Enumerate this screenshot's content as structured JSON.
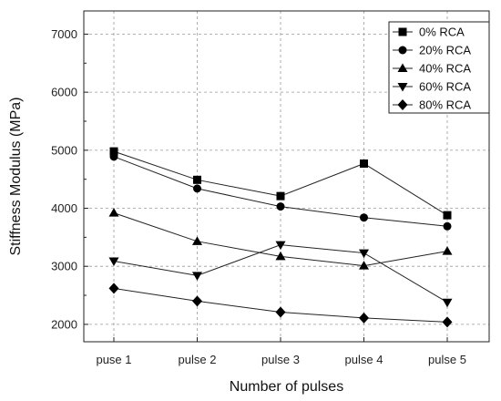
{
  "chart_data": {
    "type": "line",
    "categories": [
      "puse 1",
      "pulse 2",
      "pulse 3",
      "pulse 4",
      "pulse 5"
    ],
    "xlabel": "Number of pulses",
    "ylabel": "Stiffness Modulus (MPa)",
    "ylim": [
      1700,
      7400
    ],
    "yticks": [
      2000,
      3000,
      4000,
      5000,
      6000,
      7000
    ],
    "grid": true,
    "legend_position": "top-right",
    "series": [
      {
        "name": "0% RCA",
        "marker": "square",
        "values": [
          4980,
          4490,
          4210,
          4770,
          3880
        ]
      },
      {
        "name": "20% RCA",
        "marker": "circle",
        "values": [
          4890,
          4340,
          4030,
          3840,
          3690
        ]
      },
      {
        "name": "40% RCA",
        "marker": "triangle-up",
        "values": [
          3920,
          3430,
          3170,
          3010,
          3260
        ]
      },
      {
        "name": "60% RCA",
        "marker": "triangle-down",
        "values": [
          3090,
          2840,
          3370,
          3230,
          2380
        ]
      },
      {
        "name": "80% RCA",
        "marker": "diamond",
        "values": [
          2620,
          2400,
          2210,
          2110,
          2040
        ]
      }
    ]
  }
}
